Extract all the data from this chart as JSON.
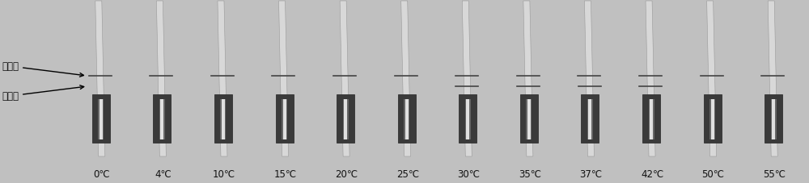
{
  "temperatures": [
    "0℃",
    "4℃",
    "10℃",
    "15℃",
    "20℃",
    "25℃",
    "30℃",
    "35℃",
    "37℃",
    "42℃",
    "50℃",
    "55℃"
  ],
  "n_strips": 12,
  "bg_color": "#c0c0c0",
  "control_line_color": "#444444",
  "detection_line_color": "#444444",
  "label_color": "#111111",
  "label_fontsize": 8.5,
  "annotation_fontsize": 8.5,
  "fig_width": 10.0,
  "fig_height": 2.28,
  "control_label": "控制线",
  "detection_label": "检测线",
  "has_control_line": [
    true,
    true,
    true,
    true,
    true,
    true,
    true,
    true,
    true,
    true,
    true,
    true
  ],
  "has_detection_line": [
    false,
    false,
    false,
    false,
    false,
    false,
    true,
    true,
    true,
    true,
    false,
    false
  ]
}
